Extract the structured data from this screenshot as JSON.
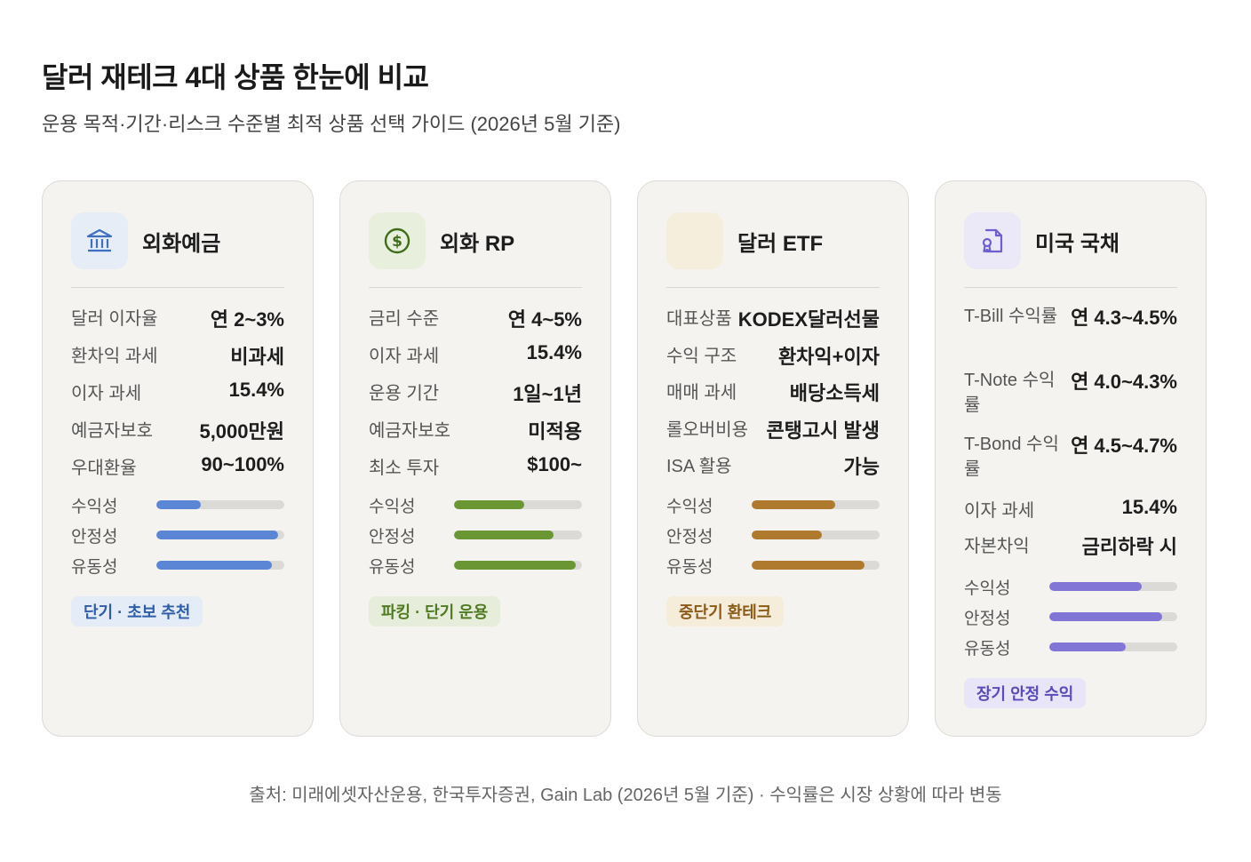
{
  "header": {
    "title": "달러 재테크 4대 상품 한눈에 비교",
    "subtitle": "운용 목적·기간·리스크 수준별 최적 상품 선택 가이드 (2026년 5월 기준)"
  },
  "bar_labels": [
    "수익성",
    "안정성",
    "유동성"
  ],
  "cards": [
    {
      "name": "외화예금",
      "icon": "bank-icon",
      "accent": "#5b86d6",
      "icon_bg": "#e6edf7",
      "rows": [
        {
          "k": "달러 이자율",
          "v": "연 2~3%"
        },
        {
          "k": "환차익 과세",
          "v": "비과세"
        },
        {
          "k": "이자 과세",
          "v": "15.4%"
        },
        {
          "k": "예금자보호",
          "v": "5,000만원"
        },
        {
          "k": "우대환율",
          "v": "90~100%"
        }
      ],
      "levels": [
        0.35,
        0.95,
        0.9
      ],
      "tag": "단기 · 초보 추천",
      "tag_bg": "#e4ecf7",
      "tag_color": "#2f5da8"
    },
    {
      "name": "외화 RP",
      "icon": "dollar-coin-icon",
      "accent": "#6b9634",
      "icon_bg": "#e8efdc",
      "rows": [
        {
          "k": "금리 수준",
          "v": "연 4~5%"
        },
        {
          "k": "이자 과세",
          "v": "15.4%"
        },
        {
          "k": "운용 기간",
          "v": "1일~1년"
        },
        {
          "k": "예금자보호",
          "v": "미적용"
        },
        {
          "k": "최소 투자",
          "v": "$100~"
        }
      ],
      "levels": [
        0.55,
        0.78,
        0.95
      ],
      "tag": "파킹 · 단기 운용",
      "tag_bg": "#e6eedb",
      "tag_color": "#4f7a22"
    },
    {
      "name": "달러 ETF",
      "icon": "chart-icon",
      "accent": "#b07a2e",
      "icon_bg": "#f6eedc",
      "rows": [
        {
          "k": "대표상품",
          "v": "KODEX달러선물"
        },
        {
          "k": "수익 구조",
          "v": "환차익+이자"
        },
        {
          "k": "매매 과세",
          "v": "배당소득세"
        },
        {
          "k": "롤오버비용",
          "v": "콘탱고시 발생"
        },
        {
          "k": "ISA 활용",
          "v": "가능"
        }
      ],
      "levels": [
        0.65,
        0.55,
        0.88
      ],
      "tag": "중단기 환테크",
      "tag_bg": "#f6ecda",
      "tag_color": "#8a5a17"
    },
    {
      "name": "미국 국채",
      "icon": "bond-document-icon",
      "accent": "#8175d6",
      "icon_bg": "#ebe8f8",
      "rows": [
        {
          "k": "T-Bill 수익률",
          "v": "연 4.3~4.5%",
          "wrap": true
        },
        {
          "k": "T-Note 수익률",
          "v": "연 4.0~4.3%",
          "wrap": true
        },
        {
          "k": "T-Bond 수익률",
          "v": "연 4.5~4.7%",
          "wrap": true
        },
        {
          "k": "이자 과세",
          "v": "15.4%"
        },
        {
          "k": "자본차익",
          "v": "금리하락 시"
        }
      ],
      "levels": [
        0.72,
        0.88,
        0.6
      ],
      "tag": "장기 안정 수익",
      "tag_bg": "#e9e5f8",
      "tag_color": "#5a4cb8"
    }
  ],
  "footer": {
    "source": "출처: 미래에셋자산운용, 한국투자증권, Gain Lab (2026년 5월 기준) · 수익률은 시장 상황에 따라 변동"
  }
}
